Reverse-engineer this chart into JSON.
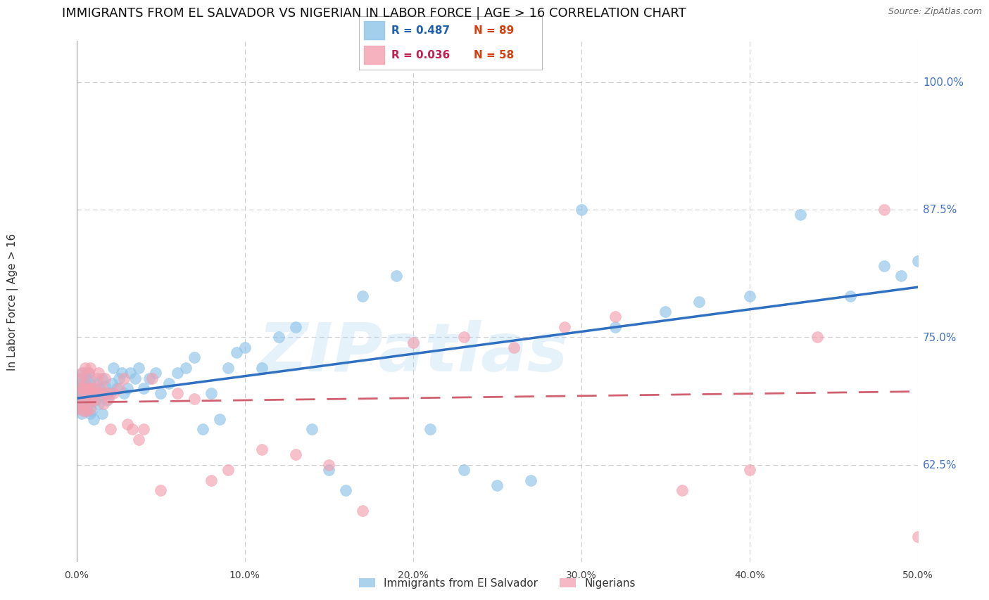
{
  "title": "IMMIGRANTS FROM EL SALVADOR VS NIGERIAN IN LABOR FORCE | AGE > 16 CORRELATION CHART",
  "source": "Source: ZipAtlas.com",
  "ylabel": "In Labor Force | Age > 16",
  "x_ticks": [
    0.0,
    0.1,
    0.2,
    0.3,
    0.4,
    0.5
  ],
  "x_tick_labels": [
    "0.0%",
    "10.0%",
    "20.0%",
    "30.0%",
    "40.0%",
    "50.0%"
  ],
  "y_ticks": [
    0.625,
    0.75,
    0.875,
    1.0
  ],
  "y_tick_labels": [
    "62.5%",
    "75.0%",
    "87.5%",
    "100.0%"
  ],
  "xlim": [
    0.0,
    0.5
  ],
  "ylim": [
    0.53,
    1.04
  ],
  "background_color": "#ffffff",
  "grid_color": "#cccccc",
  "blue_color": "#8ec4e8",
  "pink_color": "#f4a0b0",
  "blue_line_color": "#3070c0",
  "pink_line_color": "#d06070",
  "legend_R_blue": "R = 0.487",
  "legend_N_blue": "N = 89",
  "legend_R_pink": "R = 0.036",
  "legend_N_pink": "N = 58",
  "legend_label_blue": "Immigrants from El Salvador",
  "legend_label_pink": "Nigerians",
  "watermark": "ZIPatlas",
  "title_fontsize": 13,
  "axis_label_fontsize": 11,
  "tick_fontsize": 10,
  "blue_scatter_x": [
    0.001,
    0.001,
    0.001,
    0.002,
    0.002,
    0.002,
    0.003,
    0.003,
    0.003,
    0.003,
    0.004,
    0.004,
    0.004,
    0.005,
    0.005,
    0.005,
    0.005,
    0.006,
    0.006,
    0.006,
    0.007,
    0.007,
    0.007,
    0.008,
    0.008,
    0.008,
    0.009,
    0.009,
    0.01,
    0.01,
    0.011,
    0.011,
    0.012,
    0.012,
    0.013,
    0.013,
    0.014,
    0.015,
    0.015,
    0.016,
    0.017,
    0.018,
    0.02,
    0.021,
    0.022,
    0.024,
    0.025,
    0.027,
    0.028,
    0.03,
    0.032,
    0.035,
    0.037,
    0.04,
    0.043,
    0.047,
    0.05,
    0.055,
    0.06,
    0.065,
    0.07,
    0.075,
    0.08,
    0.085,
    0.09,
    0.095,
    0.1,
    0.11,
    0.12,
    0.13,
    0.14,
    0.15,
    0.16,
    0.17,
    0.19,
    0.21,
    0.23,
    0.25,
    0.27,
    0.3,
    0.32,
    0.35,
    0.37,
    0.4,
    0.43,
    0.46,
    0.48,
    0.49,
    0.5
  ],
  "blue_scatter_y": [
    0.69,
    0.7,
    0.68,
    0.695,
    0.705,
    0.685,
    0.688,
    0.698,
    0.71,
    0.675,
    0.682,
    0.7,
    0.715,
    0.678,
    0.695,
    0.705,
    0.688,
    0.68,
    0.695,
    0.71,
    0.685,
    0.7,
    0.715,
    0.675,
    0.692,
    0.708,
    0.678,
    0.695,
    0.67,
    0.7,
    0.688,
    0.695,
    0.705,
    0.692,
    0.698,
    0.685,
    0.7,
    0.675,
    0.71,
    0.695,
    0.702,
    0.688,
    0.695,
    0.705,
    0.72,
    0.7,
    0.71,
    0.715,
    0.695,
    0.7,
    0.715,
    0.71,
    0.72,
    0.7,
    0.71,
    0.715,
    0.695,
    0.705,
    0.715,
    0.72,
    0.73,
    0.66,
    0.695,
    0.67,
    0.72,
    0.735,
    0.74,
    0.72,
    0.75,
    0.76,
    0.66,
    0.62,
    0.6,
    0.79,
    0.81,
    0.66,
    0.62,
    0.605,
    0.61,
    0.875,
    0.76,
    0.775,
    0.785,
    0.79,
    0.87,
    0.79,
    0.82,
    0.81,
    0.825
  ],
  "pink_scatter_x": [
    0.001,
    0.001,
    0.002,
    0.002,
    0.003,
    0.003,
    0.004,
    0.004,
    0.005,
    0.005,
    0.005,
    0.006,
    0.006,
    0.007,
    0.007,
    0.008,
    0.008,
    0.009,
    0.009,
    0.01,
    0.01,
    0.011,
    0.012,
    0.013,
    0.014,
    0.015,
    0.016,
    0.017,
    0.018,
    0.019,
    0.02,
    0.022,
    0.025,
    0.028,
    0.03,
    0.033,
    0.037,
    0.04,
    0.045,
    0.05,
    0.06,
    0.07,
    0.08,
    0.09,
    0.11,
    0.13,
    0.15,
    0.17,
    0.2,
    0.23,
    0.26,
    0.29,
    0.32,
    0.36,
    0.4,
    0.44,
    0.48,
    0.5
  ],
  "pink_scatter_y": [
    0.695,
    0.68,
    0.71,
    0.685,
    0.7,
    0.715,
    0.678,
    0.7,
    0.688,
    0.705,
    0.72,
    0.678,
    0.695,
    0.7,
    0.715,
    0.68,
    0.72,
    0.688,
    0.7,
    0.688,
    0.695,
    0.7,
    0.71,
    0.715,
    0.695,
    0.7,
    0.685,
    0.71,
    0.695,
    0.69,
    0.66,
    0.695,
    0.7,
    0.71,
    0.665,
    0.66,
    0.65,
    0.66,
    0.71,
    0.6,
    0.695,
    0.69,
    0.61,
    0.62,
    0.64,
    0.635,
    0.625,
    0.58,
    0.745,
    0.75,
    0.74,
    0.76,
    0.77,
    0.6,
    0.62,
    0.75,
    0.875,
    0.555
  ]
}
